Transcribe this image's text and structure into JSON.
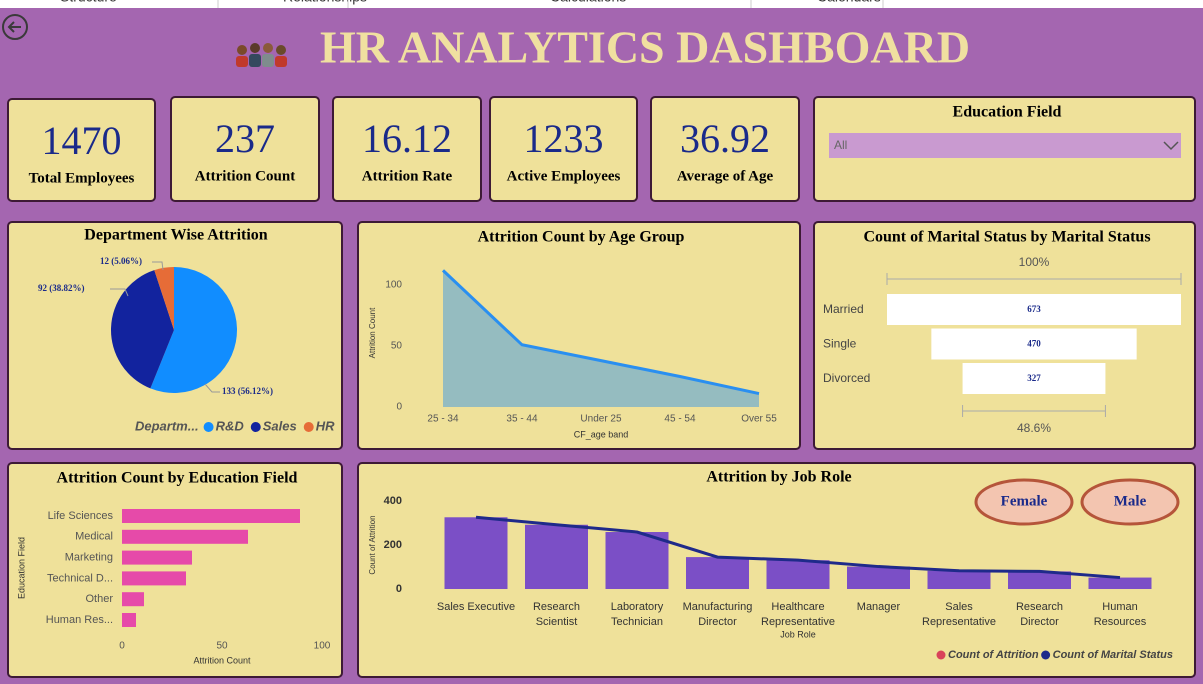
{
  "tabs": [
    "Structure",
    "Relationships",
    "Calculations",
    "Calendars"
  ],
  "header": {
    "title": "HR ANALYTICS DASHBOARD"
  },
  "kpis": [
    {
      "value": 1470,
      "label": "Total Employees"
    },
    {
      "value": 237,
      "label": "Attrition Count"
    },
    {
      "value": 16.12,
      "label": "Attrition Rate"
    },
    {
      "value": 1233,
      "label": "Active Employees"
    },
    {
      "value": 36.92,
      "label": "Average of Age"
    }
  ],
  "slicer": {
    "title": "Education Field",
    "selected": "All"
  },
  "chart_data": [
    {
      "type": "pie",
      "title": "Department Wise Attrition",
      "categories": [
        "R&D",
        "Sales",
        "HR"
      ],
      "values": [
        133,
        92,
        12
      ],
      "value_labels": [
        "133 (56.12%)",
        "92 (38.82%)",
        "12 (5.06%)"
      ],
      "colors": [
        "#118dff",
        "#12239e",
        "#e66c37"
      ],
      "legend_title": "Departm..."
    },
    {
      "type": "area",
      "title": "Attrition Count by Age Group",
      "categories": [
        "25 - 34",
        "35 - 44",
        "Under 25",
        "45 - 54",
        "Over 55"
      ],
      "values": [
        112,
        51,
        38,
        25,
        11
      ],
      "color": "#2a8ff0",
      "fill": "#95bcc0",
      "xlabel": "CF_age band",
      "ylabel": "Attrition Count",
      "ylim": [
        0,
        115
      ],
      "yticks": [
        0,
        50,
        100
      ]
    },
    {
      "type": "funnel",
      "title": "Count of Marital Status by Marital Status",
      "categories": [
        "Married",
        "Single",
        "Divorced"
      ],
      "values": [
        673,
        470,
        327
      ],
      "color": "#ffffff",
      "top_label": "100%",
      "bottom_label": "48.6%"
    },
    {
      "type": "hbar",
      "title": "Attrition Count by Education Field",
      "categories": [
        "Life Sciences",
        "Medical",
        "Marketing",
        "Technical D...",
        "Other",
        "Human Res..."
      ],
      "values": [
        89,
        63,
        35,
        32,
        11,
        7
      ],
      "color": "#e64aa9",
      "xlim": [
        0,
        100
      ],
      "xticks": [
        0,
        50,
        100
      ],
      "xlabel": "Attrition Count",
      "ylabel": "Education Field"
    },
    {
      "type": "combo",
      "title": "Attrition by Job Role",
      "categories": [
        "Sales Executive",
        "Research Scientist",
        "Laboratory Technician",
        "Manufacturing Director",
        "Healthcare Representative",
        "Manager",
        "Sales Representative",
        "Research Director",
        "Human Resources"
      ],
      "series": [
        {
          "name": "Count of Attrition",
          "kind": "bar",
          "color": "#7b4fc6",
          "legend_color": "#d9435a",
          "values": [
            326,
            292,
            259,
            145,
            131,
            102,
            83,
            80,
            52
          ]
        },
        {
          "name": "Count of Marital Status",
          "kind": "line",
          "color": "#1f2a8a",
          "legend_color": "#1f2a8a",
          "values": [
            326,
            292,
            259,
            145,
            131,
            102,
            83,
            80,
            52
          ]
        }
      ],
      "ylim": [
        0,
        420
      ],
      "yticks": [
        0,
        200,
        400
      ],
      "xlabel": "Job Role",
      "ylabel": "Count of Attrition",
      "buttons": [
        "Female",
        "Male"
      ]
    }
  ]
}
